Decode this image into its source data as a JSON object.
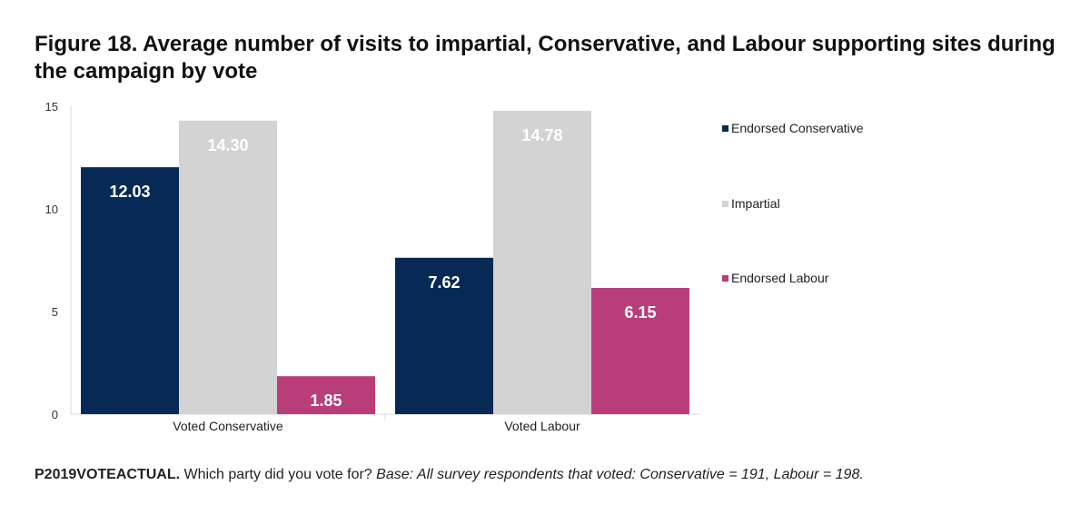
{
  "title": "Figure 18. Average number of visits to impartial, Conservative, and Labour supporting sites during the campaign by vote",
  "footnote": {
    "code": "P2019VOTEACTUAL.",
    "question": " Which party did you vote for? ",
    "base": "Base: All survey respondents that voted: Conservative = 191, Labour = 198."
  },
  "chart_data": {
    "type": "bar",
    "categories": [
      "Voted Conservative",
      "Voted Labour"
    ],
    "series": [
      {
        "name": "Endorsed Conservative",
        "color": "#062a55",
        "values": [
          12.03,
          7.62
        ],
        "labels": [
          "12.03",
          "7.62"
        ]
      },
      {
        "name": "Impartial",
        "color": "#d3d3d3",
        "values": [
          14.3,
          14.78
        ],
        "labels": [
          "14.30",
          "14.78"
        ]
      },
      {
        "name": "Endorsed Labour",
        "color": "#b83d78",
        "values": [
          1.85,
          6.15
        ],
        "labels": [
          "1.85",
          "6.15"
        ]
      }
    ],
    "yticks": [
      "0",
      "5",
      "10",
      "15"
    ],
    "ylim": [
      0,
      15
    ],
    "legend_position": "right",
    "grid": false
  }
}
